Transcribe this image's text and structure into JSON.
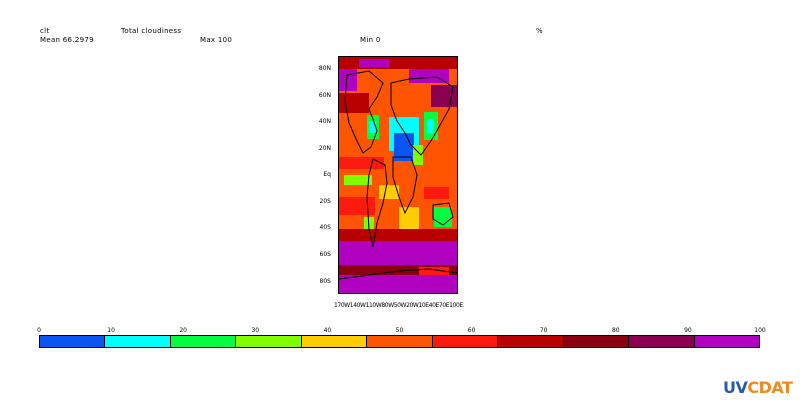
{
  "header": {
    "variable": "clt",
    "long_name": "Total cloudiness",
    "units": "%",
    "mean": "Mean 66.2979",
    "max": "Max 100",
    "min": "Min 0"
  },
  "plot": {
    "y_ticks": [
      "80N",
      "60N",
      "40N",
      "20N",
      "Eq",
      "20S",
      "40S",
      "60S",
      "80S"
    ],
    "x_ticks_text": "170W140W110W80W50W20W10E40E70E100E130E160E"
  },
  "colorbar": {
    "labels": [
      "0",
      "10",
      "20",
      "30",
      "40",
      "50",
      "60",
      "70",
      "80",
      "90",
      "100"
    ],
    "colors": [
      "#0a55f0",
      "#00ffff",
      "#00ff40",
      "#80ff00",
      "#ffcc00",
      "#ff5500",
      "#ff1a10",
      "#b80000",
      "#8a0010",
      "#8a0050",
      "#b000c0"
    ]
  },
  "logo": {
    "part1": "UV",
    "part2": "CDAT"
  }
}
